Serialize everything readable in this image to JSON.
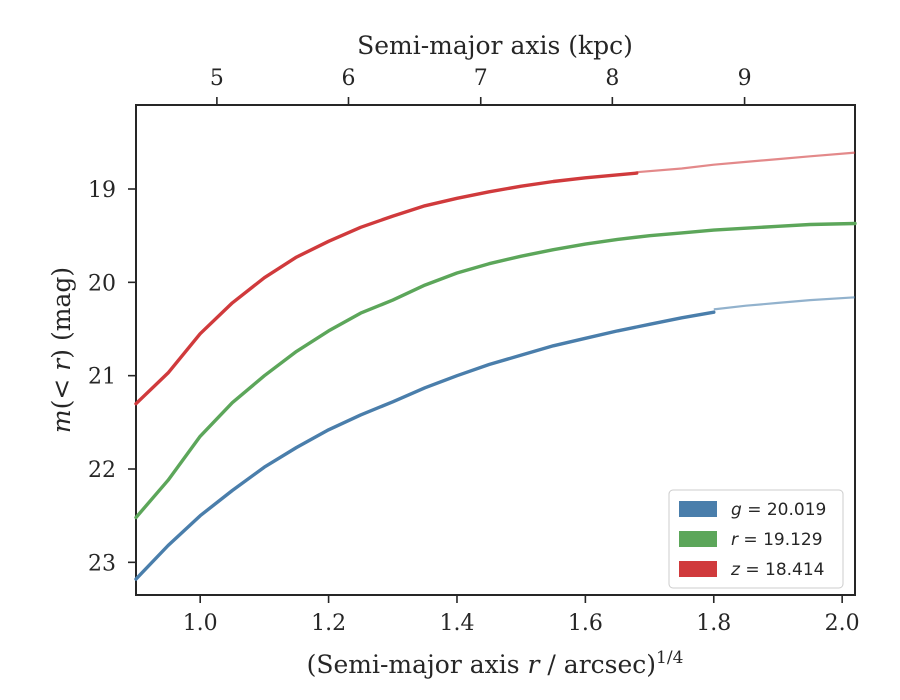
{
  "chart_data": {
    "type": "line",
    "xlabel_bottom": {
      "pre": "(Semi-major axis ",
      "var": "r",
      "post": " / arcsec)",
      "sup": "1/4"
    },
    "xlabel_top": "Semi-major axis (kpc)",
    "ylabel": {
      "pre": "m",
      "mid": "(< ",
      "var": "r",
      "post": ") (mag)"
    },
    "xlim": [
      0.9,
      2.02
    ],
    "ylim": [
      23.35,
      18.1
    ],
    "y_inverted": true,
    "x_ticks": [
      "1.0",
      "1.2",
      "1.4",
      "1.6",
      "1.8",
      "2.0"
    ],
    "x_tick_values": [
      1.0,
      1.2,
      1.4,
      1.6,
      1.8,
      2.0
    ],
    "y_ticks": [
      "19",
      "20",
      "21",
      "22",
      "23"
    ],
    "y_tick_values": [
      19,
      20,
      21,
      22,
      23
    ],
    "top_ticks": [
      "5",
      "6",
      "7",
      "8",
      "9"
    ],
    "top_tick_positions_x": [
      1.026,
      1.231,
      1.437,
      1.642,
      1.848
    ],
    "grid": false,
    "legend_position": "lower-right",
    "series": [
      {
        "name": "g = 20.019",
        "band": "g",
        "label_value": "20.019",
        "color": "#4a7eab",
        "x": [
          0.9,
          0.95,
          1.0,
          1.05,
          1.1,
          1.15,
          1.2,
          1.25,
          1.3,
          1.35,
          1.4,
          1.45,
          1.5,
          1.55,
          1.6,
          1.65,
          1.7,
          1.75,
          1.8
        ],
        "y": [
          23.18,
          22.82,
          22.5,
          22.23,
          21.98,
          21.77,
          21.58,
          21.42,
          21.28,
          21.13,
          21.0,
          20.88,
          20.78,
          20.68,
          20.6,
          20.52,
          20.45,
          20.38,
          20.32
        ],
        "extension_x": [
          1.8,
          1.85,
          1.9,
          1.95,
          2.02
        ],
        "extension_y": [
          20.29,
          20.25,
          20.22,
          20.19,
          20.16
        ]
      },
      {
        "name": "r = 19.129",
        "band": "r",
        "label_value": "19.129",
        "color": "#5ca65a",
        "x": [
          0.9,
          0.95,
          1.0,
          1.05,
          1.1,
          1.15,
          1.2,
          1.25,
          1.3,
          1.35,
          1.4,
          1.45,
          1.5,
          1.55,
          1.6,
          1.65,
          1.7,
          1.75,
          1.8,
          1.85,
          1.9,
          1.95,
          2.02
        ],
        "y": [
          22.52,
          22.12,
          21.65,
          21.29,
          21.0,
          20.74,
          20.52,
          20.33,
          20.19,
          20.03,
          19.9,
          19.8,
          19.72,
          19.65,
          19.59,
          19.54,
          19.5,
          19.47,
          19.44,
          19.42,
          19.4,
          19.38,
          19.37
        ]
      },
      {
        "name": "z = 18.414",
        "band": "z",
        "label_value": "18.414",
        "color": "#d03a3c",
        "x": [
          0.9,
          0.95,
          1.0,
          1.05,
          1.1,
          1.15,
          1.2,
          1.25,
          1.3,
          1.35,
          1.4,
          1.45,
          1.5,
          1.55,
          1.6,
          1.68
        ],
        "y": [
          21.3,
          20.97,
          20.55,
          20.22,
          19.95,
          19.73,
          19.56,
          19.41,
          19.29,
          19.18,
          19.1,
          19.03,
          18.97,
          18.92,
          18.88,
          18.83
        ],
        "extension_x": [
          1.68,
          1.75,
          1.8,
          1.85,
          1.9,
          1.95,
          2.02
        ],
        "extension_y": [
          18.82,
          18.78,
          18.74,
          18.71,
          18.68,
          18.65,
          18.61
        ]
      }
    ]
  }
}
